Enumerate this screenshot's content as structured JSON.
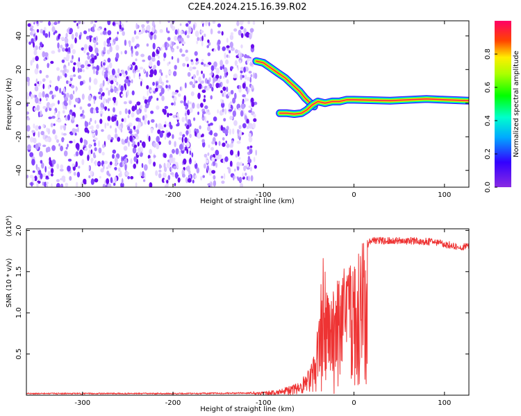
{
  "title": "C2E4.2024.215.16.39.R02",
  "chart_data": [
    {
      "type": "heatmap",
      "xlabel": "Height of straight line (km)",
      "ylabel": "Frequency (Hz)",
      "xlim": [
        -362,
        127
      ],
      "ylim": [
        -50,
        49
      ],
      "xticks": [
        -300,
        -200,
        -100,
        0,
        100
      ],
      "yticks": [
        -40,
        -20,
        0,
        20,
        40
      ],
      "colorbar": {
        "label": "Normalized spectral amplitude",
        "range": [
          0,
          1
        ],
        "ticks": [
          0.0,
          0.2,
          0.4,
          0.6,
          0.8
        ],
        "colormap": "rainbow (purple-blue-cyan-green-yellow-red-magenta)"
      },
      "noise_region": {
        "x": [
          -362,
          -108
        ],
        "y": [
          -50,
          49
        ],
        "amplitude": 0.1
      },
      "ridges": [
        {
          "points": [
            [
              -108,
              25
            ],
            [
              -100,
              24
            ],
            [
              -92,
              21
            ],
            [
              -84,
              18
            ],
            [
              -76,
              15
            ],
            [
              -68,
              11
            ],
            [
              -60,
              7
            ],
            [
              -54,
              3
            ],
            [
              -48,
              0
            ],
            [
              -44,
              -2
            ]
          ],
          "amplitude": 0.85
        },
        {
          "points": [
            [
              -82,
              -6
            ],
            [
              -74,
              -6
            ],
            [
              -66,
              -6.5
            ],
            [
              -58,
              -6
            ],
            [
              -52,
              -4
            ],
            [
              -46,
              -1
            ],
            [
              -40,
              1
            ],
            [
              -32,
              0
            ],
            [
              -24,
              1
            ],
            [
              -16,
              1
            ],
            [
              -8,
              2
            ],
            [
              0,
              2
            ],
            [
              40,
              1.5
            ],
            [
              80,
              2.5
            ],
            [
              100,
              2
            ],
            [
              127,
              1.5
            ]
          ],
          "amplitude": 0.95
        }
      ]
    },
    {
      "type": "line",
      "xlabel": "Height of straight line (km)",
      "ylabel": "SNR (10 * v/v)",
      "y_multiplier": "(x10⁴)",
      "xlim": [
        -362,
        127
      ],
      "ylim": [
        0,
        2.02
      ],
      "xticks": [
        -300,
        -200,
        -100,
        0,
        100
      ],
      "yticks": [
        0.5,
        1.0,
        1.5,
        2.0
      ],
      "color": "#ee3333",
      "envelope": [
        [
          -362,
          0.02
        ],
        [
          -200,
          0.02
        ],
        [
          -120,
          0.025
        ],
        [
          -100,
          0.04
        ],
        [
          -80,
          0.08
        ],
        [
          -60,
          0.15
        ],
        [
          -50,
          0.3
        ],
        [
          -45,
          0.45
        ],
        [
          -40,
          0.8
        ],
        [
          -37,
          1.2
        ],
        [
          -34,
          1.75
        ],
        [
          -30,
          1.3
        ],
        [
          -25,
          1.1
        ],
        [
          -20,
          1.35
        ],
        [
          -15,
          1.5
        ],
        [
          -10,
          1.55
        ],
        [
          -5,
          1.6
        ],
        [
          0,
          1.62
        ],
        [
          5,
          1.65
        ],
        [
          10,
          1.8
        ],
        [
          15,
          1.88
        ],
        [
          20,
          1.93
        ],
        [
          30,
          1.92
        ],
        [
          50,
          1.92
        ],
        [
          70,
          1.92
        ],
        [
          90,
          1.9
        ],
        [
          100,
          1.88
        ],
        [
          110,
          1.86
        ],
        [
          127,
          1.84
        ]
      ],
      "dropouts": [
        [
          -36,
          0.05
        ],
        [
          -32,
          0.3
        ],
        [
          -22,
          0.02
        ],
        [
          -15,
          0.7
        ],
        [
          -8,
          0.9
        ],
        [
          4,
          1.1
        ]
      ]
    }
  ]
}
